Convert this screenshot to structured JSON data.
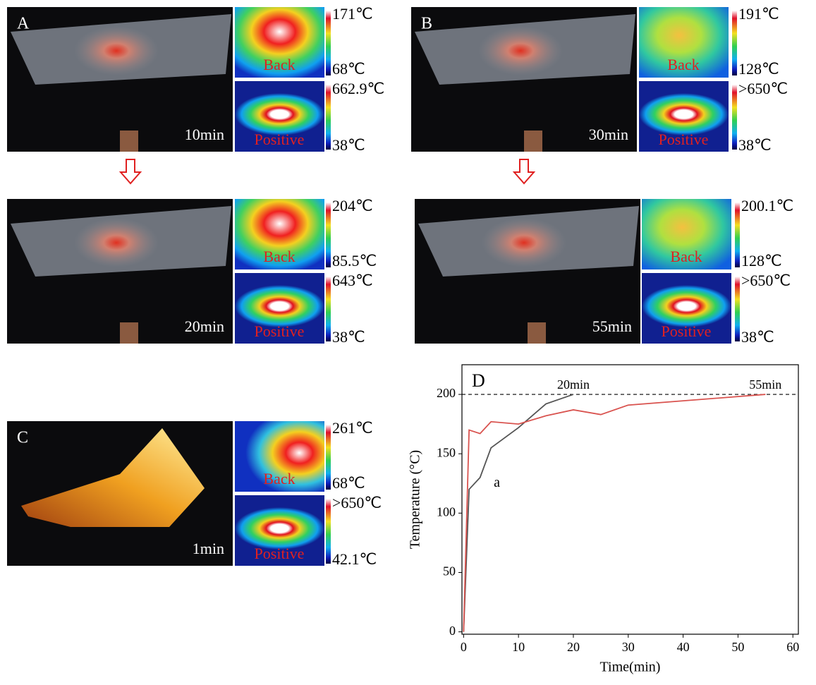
{
  "panels": [
    {
      "letter": "A",
      "time": "10min",
      "back_label": "Back",
      "back_max": "171℃",
      "back_min": "68℃",
      "positive_label": "Positive",
      "positive_max": "662.9℃",
      "positive_min": "38℃"
    },
    {
      "time": "20min",
      "back_label": "Back",
      "back_max": "204℃",
      "back_min": "85.5℃",
      "positive_label": "Positive",
      "positive_max": "643℃",
      "positive_min": "38℃"
    },
    {
      "letter": "B",
      "time": "30min",
      "back_label": "Back",
      "back_max": "191℃",
      "back_min": "128℃",
      "positive_label": "Positive",
      "positive_max": ">650℃",
      "positive_min": "38℃"
    },
    {
      "time": "55min",
      "back_label": "Back",
      "back_max": "200.1℃",
      "back_min": "128℃",
      "positive_label": "Positive",
      "positive_max": ">650℃",
      "positive_min": "38℃"
    },
    {
      "letter": "C",
      "time": "1min",
      "back_label": "Back",
      "back_max": "261℃",
      "back_min": "68℃",
      "positive_label": "Positive",
      "positive_max": ">650℃",
      "positive_min": "42.1℃"
    }
  ],
  "chart_data": {
    "type": "line",
    "x_label": "Time(min)",
    "y_label": "Temperature (°C)",
    "xlim": [
      -0.3,
      61
    ],
    "ylim": [
      -2,
      225
    ],
    "xticks": [
      0,
      10,
      20,
      30,
      40,
      50,
      60
    ],
    "yticks": [
      0,
      50,
      100,
      150,
      200
    ],
    "reference_line": 200,
    "annotations": [
      "D",
      "a",
      "20min",
      "55min"
    ],
    "series": [
      {
        "name": "a",
        "color": "#555555",
        "x": [
          0,
          1,
          3,
          5,
          10,
          15,
          20
        ],
        "values": [
          0,
          120,
          130,
          155,
          172,
          192,
          200
        ]
      },
      {
        "color": "#d9534f",
        "x": [
          0,
          1,
          3,
          5,
          10,
          15,
          20,
          25,
          30,
          55
        ],
        "values": [
          0,
          170,
          167,
          177,
          175,
          182,
          187,
          183,
          191,
          200
        ]
      }
    ]
  }
}
